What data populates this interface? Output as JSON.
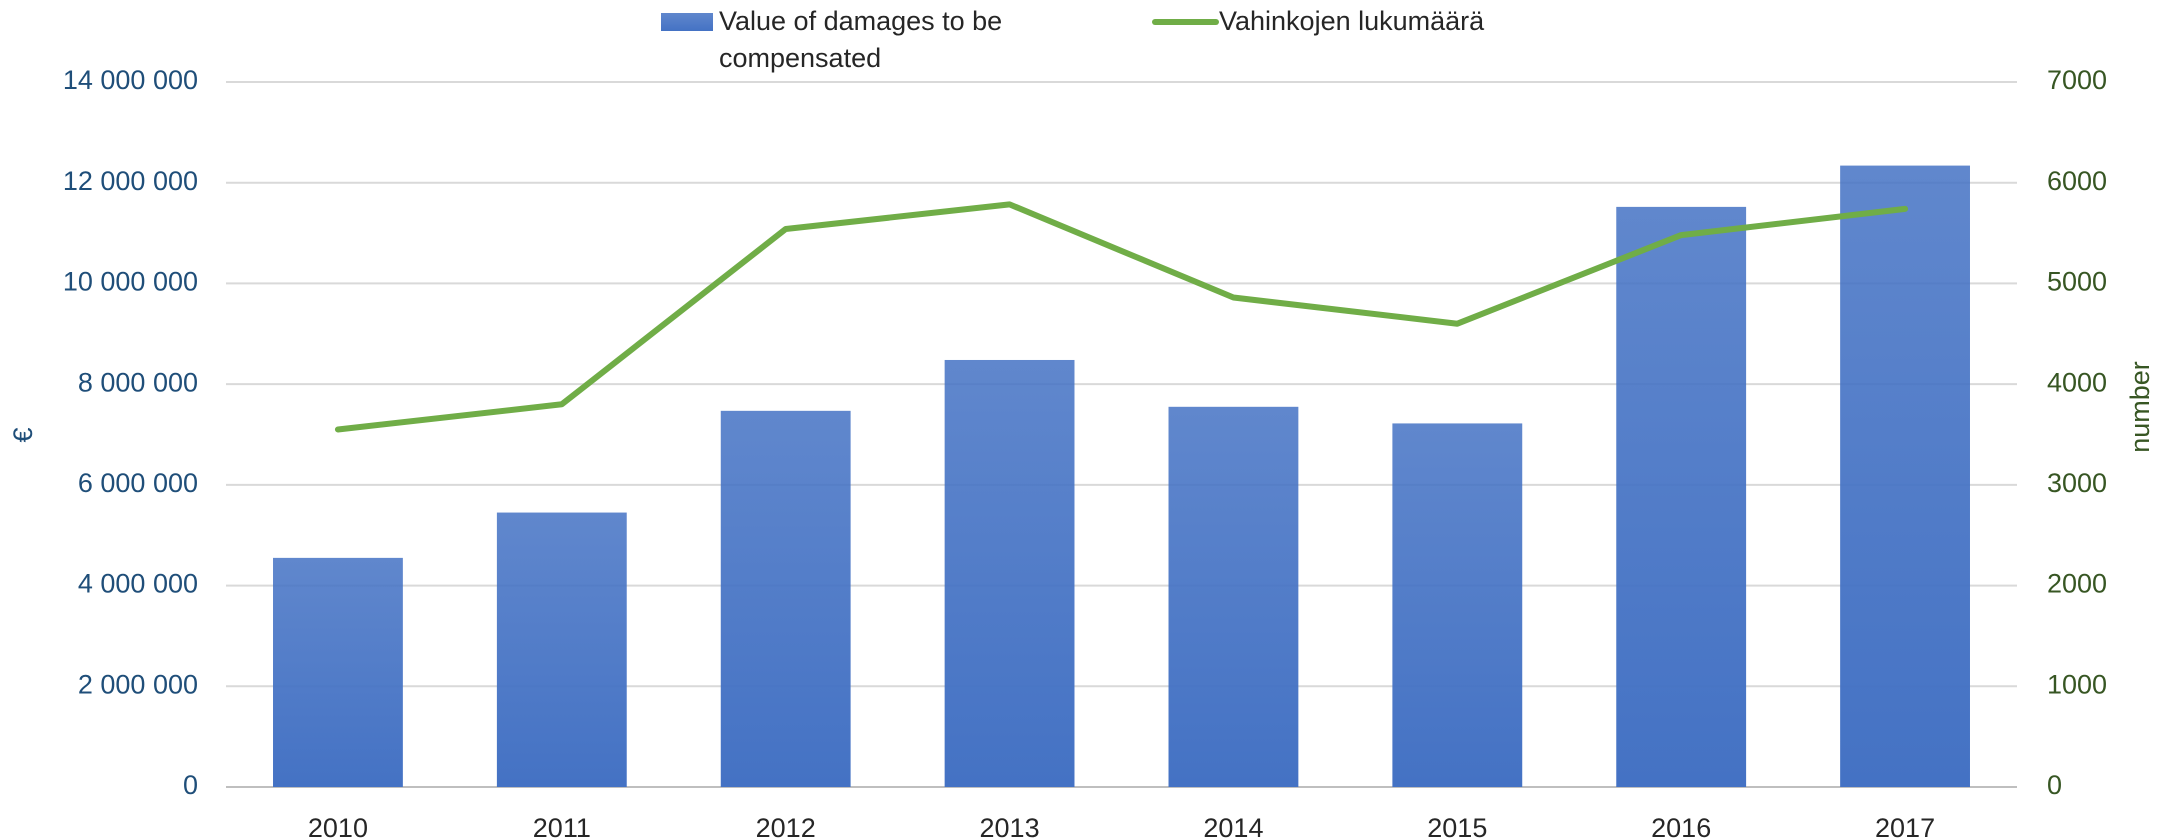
{
  "chart_data": {
    "type": "combo",
    "categories": [
      "2010",
      "2011",
      "2012",
      "2013",
      "2014",
      "2015",
      "2016",
      "2017"
    ],
    "series": [
      {
        "name": "Value of damages to be compensated",
        "type": "bar",
        "color": "#4472c4",
        "axis": "y",
        "values": [
          4550000,
          5450000,
          7470000,
          8480000,
          7550000,
          7220000,
          11520000,
          12340000
        ]
      },
      {
        "name": "Vahinkojen lukumäärä",
        "type": "line",
        "color": "#70ad47",
        "axis": "y2",
        "values": [
          3550,
          3800,
          5540,
          5785,
          4860,
          4600,
          5480,
          5740
        ]
      }
    ],
    "ylabel": "€",
    "y2label": "number",
    "ylim": [
      0,
      14000000
    ],
    "yticks": [
      0,
      {
        "value": 2000000,
        "label": "2 000 000"
      },
      {
        "value": 4000000,
        "label": "4 000 000"
      },
      {
        "value": 6000000,
        "label": "6 000 000"
      },
      {
        "value": 8000000,
        "label": "8 000 000"
      },
      {
        "value": 10000000,
        "label": "10 000 000"
      },
      {
        "value": 12000000,
        "label": "12 000 000"
      },
      {
        "value": 14000000,
        "label": "14 000 000"
      }
    ],
    "y2lim": [
      0,
      7000
    ],
    "y2ticks": [
      0,
      1000,
      2000,
      3000,
      4000,
      5000,
      6000,
      7000
    ],
    "grid": true,
    "legend": "top"
  }
}
